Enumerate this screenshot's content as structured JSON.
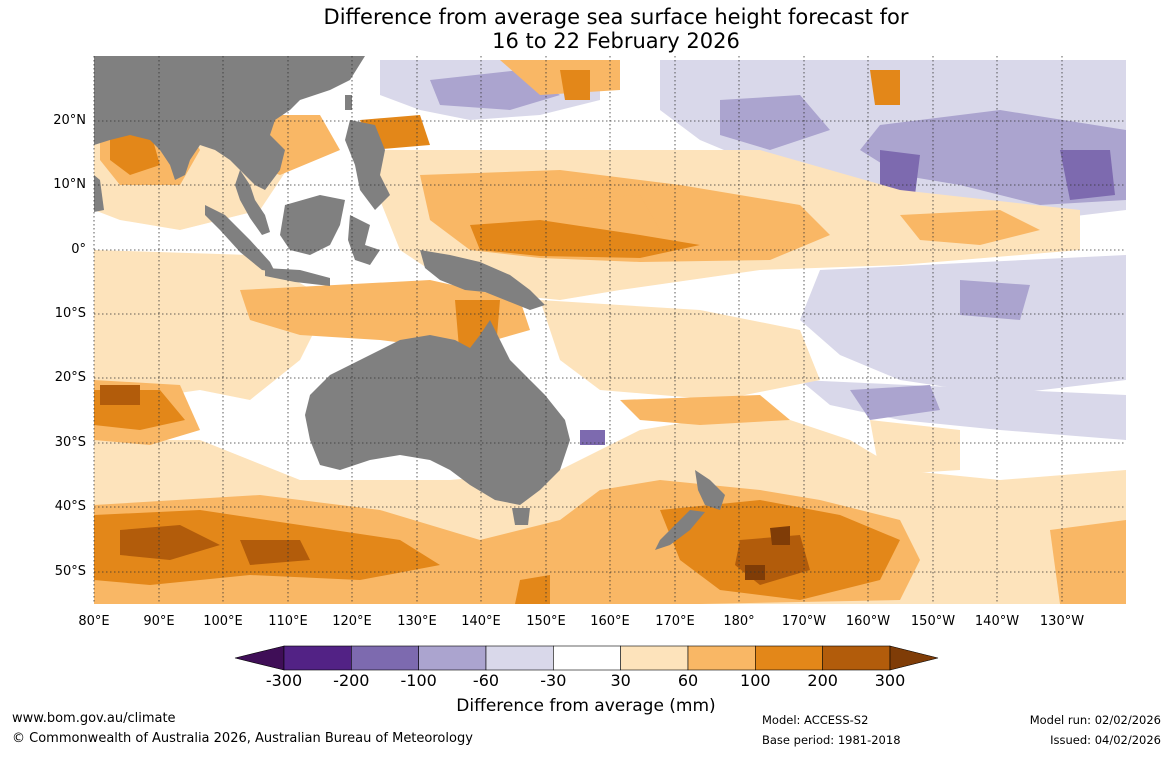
{
  "title_line1": "Difference from average sea surface height forecast for",
  "title_line2": "16 to 22 February 2026",
  "lat_labels": [
    "20°N",
    "10°N",
    "0°",
    "10°S",
    "20°S",
    "30°S",
    "40°S",
    "50°S"
  ],
  "lon_labels": [
    "80°E",
    "90°E",
    "100°E",
    "110°E",
    "120°E",
    "130°E",
    "140°E",
    "150°E",
    "160°E",
    "170°E",
    "180°",
    "170°W",
    "160°W",
    "150°W",
    "140°W",
    "130°W"
  ],
  "legend": {
    "ticks": [
      "-300",
      "-200",
      "-100",
      "-60",
      "-30",
      "30",
      "60",
      "100",
      "200",
      "300"
    ],
    "colors": [
      "#3f0e57",
      "#522285",
      "#7d6aaf",
      "#aba4cf",
      "#d9d8ea",
      "#ffffff",
      "#fde3bb",
      "#f9b765",
      "#e38719",
      "#b25c0b",
      "#7f3c07"
    ],
    "title": "Difference from average (mm)"
  },
  "land_color": "#808080",
  "footer": {
    "url": "www.bom.gov.au/climate",
    "copyright": "© Commonwealth of Australia 2026, Australian Bureau of Meteorology",
    "model": "Model: ACCESS-S2",
    "base_period": "Base period: 1981-2018",
    "model_run": "Model run: 02/02/2026",
    "issued": "Issued: 04/02/2026"
  }
}
